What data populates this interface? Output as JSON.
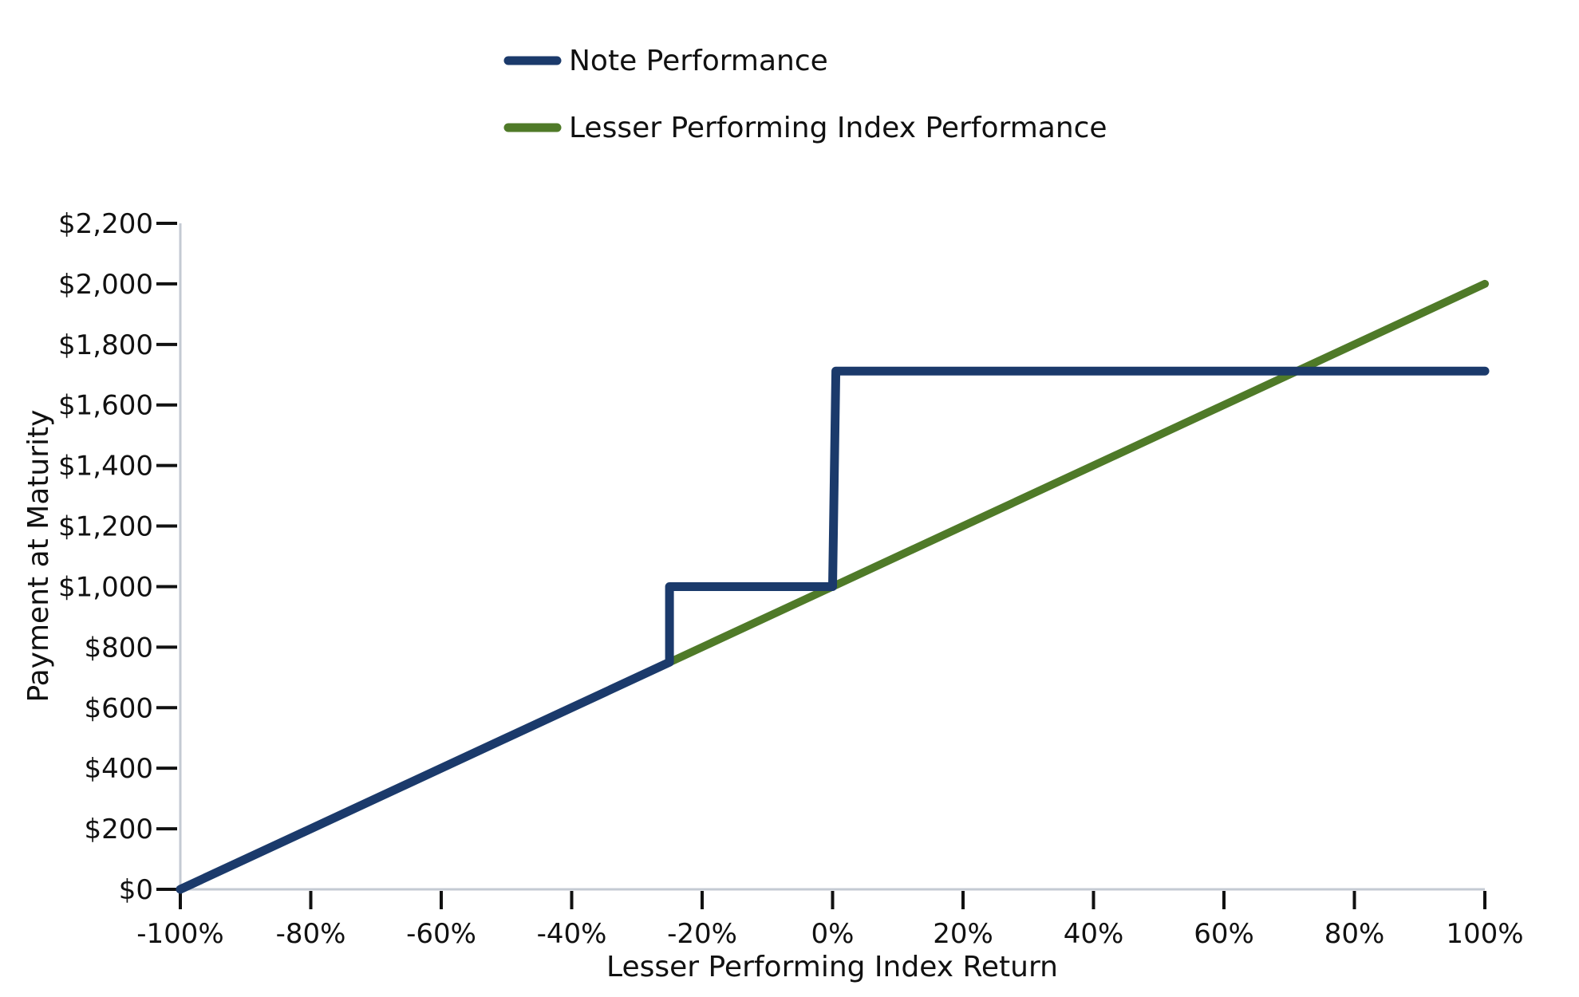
{
  "chart_data": {
    "type": "line",
    "title": "",
    "xlabel": "Lesser Performing Index Return",
    "ylabel": "Payment at Maturity",
    "xlim": [
      -100,
      100
    ],
    "ylim": [
      0,
      2200
    ],
    "x_ticks": [
      -100,
      -80,
      -60,
      -40,
      -20,
      0,
      20,
      40,
      60,
      80,
      100
    ],
    "x_tick_labels": [
      "-100%",
      "-80%",
      "-60%",
      "-40%",
      "-20%",
      "0%",
      "20%",
      "40%",
      "60%",
      "80%",
      "100%"
    ],
    "y_ticks": [
      0,
      200,
      400,
      600,
      800,
      1000,
      1200,
      1400,
      1600,
      1800,
      2000,
      2200
    ],
    "y_tick_labels": [
      "$0",
      "$200",
      "$400",
      "$600",
      "$800",
      "$1,000",
      "$1,200",
      "$1,400",
      "$1,600",
      "$1,800",
      "$2,000",
      "$2,200"
    ],
    "grid": false,
    "legend_position": "top-center",
    "series": [
      {
        "name": "Note Performance",
        "color": "#1b3a6b",
        "x": [
          -100,
          -25,
          -25,
          0,
          0.5,
          100
        ],
        "y": [
          0,
          750,
          1000,
          1000,
          1712,
          1712
        ]
      },
      {
        "name": "Lesser Performing Index Performance",
        "color": "#4f7a28",
        "x": [
          -100,
          100
        ],
        "y": [
          0,
          2000
        ]
      }
    ]
  }
}
